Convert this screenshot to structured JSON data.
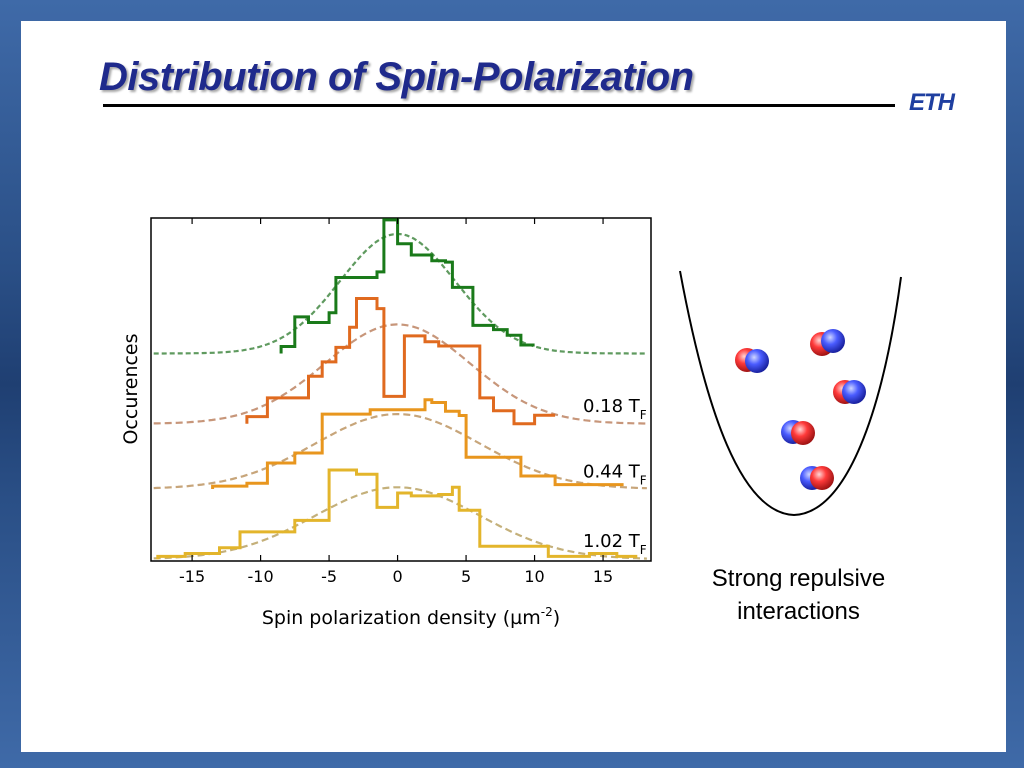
{
  "slide": {
    "title": "Distribution of Spin-Polarization",
    "logo": "ETH",
    "caption_line1": "Strong repulsive",
    "caption_line2": "interactions"
  },
  "chart_data": {
    "type": "line",
    "xlabel": "Spin polarization density (µm",
    "xlabel_sup": "-2",
    "xlabel_end": ")",
    "ylabel": "Occurences",
    "xlim": [
      -18,
      18.5
    ],
    "xticks": [
      -15,
      -10,
      -5,
      0,
      5,
      10,
      15
    ],
    "grid": false,
    "series": [
      {
        "offset": 0.605,
        "scale": 0.41,
        "color": "#1a7a1a",
        "fit_color": "#5f9a5f",
        "fit_amp": 0.85,
        "fit_sigma": 4.2,
        "edges": [
          -8.5,
          -7.5,
          -6.5,
          -5,
          -4.5,
          -3.5,
          -1.5,
          -1,
          0,
          1,
          2.5,
          3.5,
          4,
          5,
          5.5,
          7,
          8,
          9,
          10
        ],
        "heights": [
          0.05,
          0.26,
          0.22,
          0.29,
          0.54,
          0.54,
          0.58,
          0.95,
          0.78,
          0.7,
          0.66,
          0.65,
          0.47,
          0.47,
          0.2,
          0.17,
          0.13,
          0.06
        ]
      },
      {
        "offset": 0.4,
        "scale": 0.42,
        "color": "#e06a1f",
        "fit_color": "#c7967a",
        "fit_amp": 0.69,
        "fit_sigma": 5.3,
        "edges": [
          -11,
          -9.5,
          -8,
          -6.5,
          -5.5,
          -4.5,
          -3.5,
          -3,
          -1.5,
          -1,
          0,
          0.5,
          2,
          3,
          4.5,
          6,
          7,
          8.5,
          10,
          11.5
        ],
        "heights": [
          0.05,
          0.18,
          0.18,
          0.33,
          0.43,
          0.53,
          0.67,
          0.87,
          0.8,
          0.19,
          0.19,
          0.61,
          0.57,
          0.54,
          0.54,
          0.18,
          0.09,
          0.0,
          0.06
        ]
      },
      {
        "offset": 0.21,
        "scale": 0.42,
        "color": "#e8961e",
        "fit_color": "#c7a57a",
        "fit_amp": 0.52,
        "fit_sigma": 6.0,
        "edges": [
          -13.5,
          -11,
          -9.5,
          -7.5,
          -5.5,
          -3.5,
          -2,
          0,
          0.5,
          2,
          2.5,
          3.5,
          4.5,
          5,
          8,
          9,
          11.5,
          13.5,
          16.5
        ],
        "heights": [
          0.02,
          0.04,
          0.18,
          0.25,
          0.52,
          0.52,
          0.55,
          0.55,
          0.55,
          0.62,
          0.6,
          0.54,
          0.51,
          0.22,
          0.22,
          0.09,
          0.03,
          0.03
        ]
      },
      {
        "offset": 0.005,
        "scale": 0.42,
        "color": "#e3b52b",
        "fit_color": "#c4b07a",
        "fit_amp": 0.5,
        "fit_sigma": 6.0,
        "edges": [
          -17.5,
          -15.5,
          -13,
          -11.5,
          -10,
          -8.5,
          -7.5,
          -6.5,
          -5,
          -4.5,
          -3,
          -1.5,
          0,
          1,
          2,
          3,
          4,
          4.5,
          6,
          8.5,
          11,
          12.5,
          14,
          16,
          17.5
        ],
        "heights": [
          0.02,
          0.04,
          0.08,
          0.19,
          0.19,
          0.19,
          0.27,
          0.27,
          0.62,
          0.62,
          0.59,
          0.36,
          0.46,
          0.44,
          0.44,
          0.45,
          0.5,
          0.34,
          0.09,
          0.09,
          0.02,
          0.02,
          0.04,
          0.02
        ]
      }
    ],
    "labels": [
      {
        "text": "0.18 T",
        "sub": "F",
        "y": 0.405
      },
      {
        "text": "0.44 T",
        "sub": "F",
        "y": 0.215
      },
      {
        "text": "1.02 T",
        "sub": "F",
        "y": 0.012
      }
    ]
  }
}
